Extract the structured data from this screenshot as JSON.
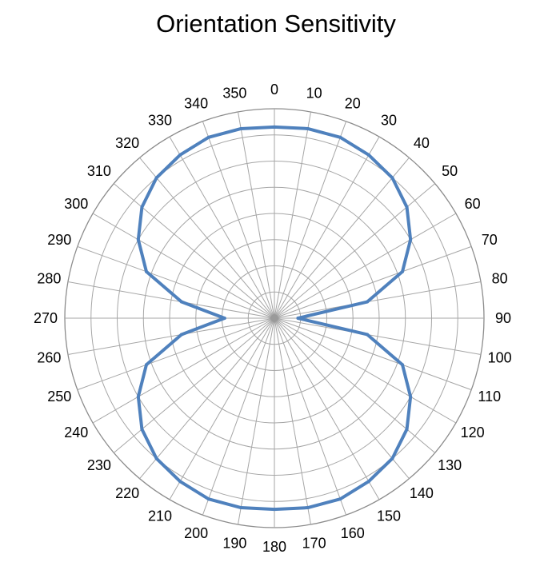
{
  "chart_data": {
    "type": "line",
    "polar": true,
    "title": "Orientation Sensitivity",
    "angle_unit": "degrees",
    "angle_direction": "clockwise",
    "zero_location": "top",
    "angle_ticks": [
      "0",
      "10",
      "20",
      "30",
      "40",
      "50",
      "60",
      "70",
      "80",
      "90",
      "100",
      "110",
      "120",
      "130",
      "140",
      "150",
      "160",
      "170",
      "180",
      "190",
      "200",
      "210",
      "220",
      "230",
      "240",
      "250",
      "260",
      "270",
      "280",
      "290",
      "300",
      "310",
      "320",
      "330",
      "340",
      "350"
    ],
    "radial_gridlines": 8,
    "rlim": [
      0,
      8
    ],
    "grid": true,
    "legend": "none",
    "series": [
      {
        "color": "#4F81BD",
        "angles": [
          0,
          10,
          20,
          30,
          40,
          50,
          60,
          70,
          80,
          90,
          100,
          110,
          120,
          130,
          140,
          150,
          160,
          170,
          180,
          190,
          200,
          210,
          220,
          230,
          240,
          250,
          260,
          270,
          280,
          290,
          300,
          310,
          320,
          330,
          340,
          350
        ],
        "values": [
          7.3,
          7.35,
          7.35,
          7.2,
          7.0,
          6.6,
          6.0,
          5.2,
          3.6,
          0.9,
          3.6,
          5.2,
          6.0,
          6.6,
          7.0,
          7.2,
          7.35,
          7.35,
          7.3,
          7.35,
          7.35,
          7.2,
          7.0,
          6.6,
          6.0,
          5.2,
          3.6,
          1.9,
          3.6,
          5.2,
          6.0,
          6.6,
          7.0,
          7.2,
          7.35,
          7.35
        ]
      }
    ]
  }
}
